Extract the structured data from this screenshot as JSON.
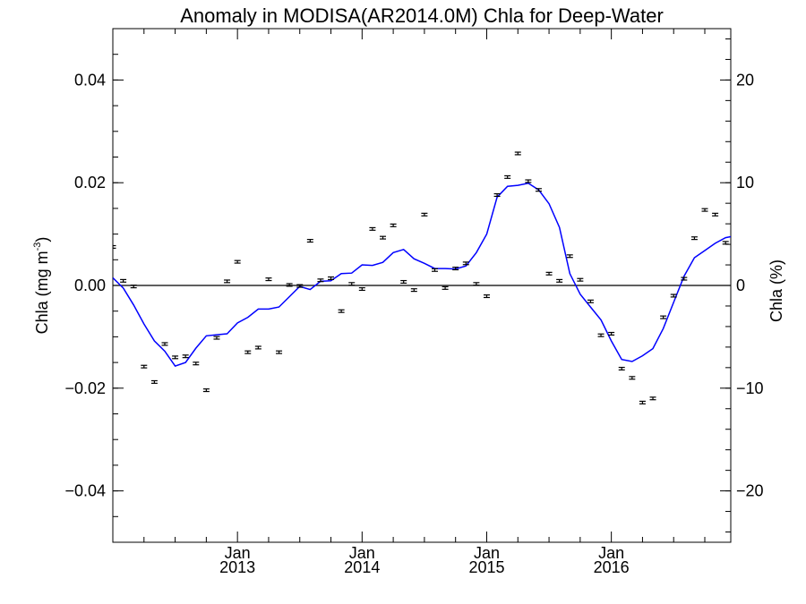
{
  "chart_data": {
    "type": "line",
    "title": "Anomaly in MODISA(AR2014.0M) Chla for Deep-Water",
    "ylabel_main": "Chla (mg m",
    "ylabel_sup": "-3",
    "ylabel_close": ")",
    "y2label": "Chla (%)",
    "xlim": [
      2012.0,
      2016.9583
    ],
    "ylim": [
      -0.05,
      0.05
    ],
    "y2lim": [
      -25,
      25
    ],
    "y_ticks": [
      {
        "value": -0.04,
        "label": "−0.04"
      },
      {
        "value": -0.02,
        "label": "−0.02"
      },
      {
        "value": 0.0,
        "label": "0.00"
      },
      {
        "value": 0.02,
        "label": "0.02"
      },
      {
        "value": 0.04,
        "label": "0.04"
      }
    ],
    "y2_ticks": [
      {
        "value": -20,
        "label": "−20"
      },
      {
        "value": -10,
        "label": "−10"
      },
      {
        "value": 0,
        "label": "0"
      },
      {
        "value": 10,
        "label": "10"
      },
      {
        "value": 20,
        "label": "20"
      }
    ],
    "x_ticks": [
      {
        "value": 2013.0,
        "month": "Jan",
        "year": "2013"
      },
      {
        "value": 2014.0,
        "month": "Jan",
        "year": "2014"
      },
      {
        "value": 2015.0,
        "month": "Jan",
        "year": "2015"
      },
      {
        "value": 2016.0,
        "month": "Jan",
        "year": "2016"
      }
    ],
    "zero_line": 0,
    "series": [
      {
        "kind": "smoothed-line",
        "color": "#0000ff",
        "points": [
          [
            2012.0,
            0.0015
          ],
          [
            2012.0833,
            -0.0005
          ],
          [
            2012.1667,
            -0.0038
          ],
          [
            2012.25,
            -0.0075
          ],
          [
            2012.3333,
            -0.0108
          ],
          [
            2012.4167,
            -0.0128
          ],
          [
            2012.5,
            -0.0157
          ],
          [
            2012.5833,
            -0.015
          ],
          [
            2012.6667,
            -0.0122
          ],
          [
            2012.75,
            -0.0098
          ],
          [
            2012.8333,
            -0.0096
          ],
          [
            2012.9167,
            -0.0094
          ],
          [
            2013.0,
            -0.0073
          ],
          [
            2013.0833,
            -0.0062
          ],
          [
            2013.1667,
            -0.0046
          ],
          [
            2013.25,
            -0.0046
          ],
          [
            2013.3333,
            -0.0042
          ],
          [
            2013.4167,
            -0.0022
          ],
          [
            2013.5,
            -0.0002
          ],
          [
            2013.5833,
            -0.0008
          ],
          [
            2013.6667,
            0.0008
          ],
          [
            2013.75,
            0.0009
          ],
          [
            2013.8333,
            0.0023
          ],
          [
            2013.9167,
            0.0024
          ],
          [
            2014.0,
            0.004
          ],
          [
            2014.0833,
            0.0039
          ],
          [
            2014.1667,
            0.0045
          ],
          [
            2014.25,
            0.0064
          ],
          [
            2014.3333,
            0.007
          ],
          [
            2014.4167,
            0.0052
          ],
          [
            2014.5,
            0.0043
          ],
          [
            2014.5833,
            0.0033
          ],
          [
            2014.6667,
            0.0033
          ],
          [
            2014.75,
            0.0032
          ],
          [
            2014.8333,
            0.0038
          ],
          [
            2014.9167,
            0.0064
          ],
          [
            2015.0,
            0.01
          ],
          [
            2015.0833,
            0.0172
          ],
          [
            2015.1667,
            0.0193
          ],
          [
            2015.25,
            0.0195
          ],
          [
            2015.3333,
            0.0199
          ],
          [
            2015.4167,
            0.0186
          ],
          [
            2015.5,
            0.0159
          ],
          [
            2015.5833,
            0.0113
          ],
          [
            2015.6667,
            0.0023
          ],
          [
            2015.75,
            -0.0017
          ],
          [
            2015.8333,
            -0.0042
          ],
          [
            2015.9167,
            -0.0067
          ],
          [
            2016.0,
            -0.0108
          ],
          [
            2016.0833,
            -0.0144
          ],
          [
            2016.1667,
            -0.0148
          ],
          [
            2016.25,
            -0.0137
          ],
          [
            2016.3333,
            -0.0123
          ],
          [
            2016.4167,
            -0.0084
          ],
          [
            2016.5,
            -0.0033
          ],
          [
            2016.5833,
            0.0018
          ],
          [
            2016.6667,
            0.0054
          ],
          [
            2016.75,
            0.0068
          ],
          [
            2016.8333,
            0.0082
          ],
          [
            2016.9167,
            0.0093
          ],
          [
            2016.9583,
            0.0095
          ]
        ]
      },
      {
        "kind": "monthly-errorbars",
        "color": "#000000",
        "error": 0.00025,
        "points": [
          [
            2012.0,
            0.0075
          ],
          [
            2012.0833,
            0.0009
          ],
          [
            2012.1667,
            -0.0002
          ],
          [
            2012.25,
            -0.0158
          ],
          [
            2012.3333,
            -0.0188
          ],
          [
            2012.4167,
            -0.0114
          ],
          [
            2012.5,
            -0.014
          ],
          [
            2012.5833,
            -0.0138
          ],
          [
            2012.6667,
            -0.0152
          ],
          [
            2012.75,
            -0.0204
          ],
          [
            2012.8333,
            -0.0102
          ],
          [
            2012.9167,
            0.0008
          ],
          [
            2013.0,
            0.0046
          ],
          [
            2013.0833,
            -0.013
          ],
          [
            2013.1667,
            -0.0121
          ],
          [
            2013.25,
            0.0012
          ],
          [
            2013.3333,
            -0.013
          ],
          [
            2013.4167,
            0.0001
          ],
          [
            2013.5,
            -0.0001
          ],
          [
            2013.5833,
            0.0087
          ],
          [
            2013.6667,
            0.001
          ],
          [
            2013.75,
            0.0014
          ],
          [
            2013.8333,
            -0.005
          ],
          [
            2013.9167,
            0.0003
          ],
          [
            2014.0,
            -0.0007
          ],
          [
            2014.0833,
            0.011
          ],
          [
            2014.1667,
            0.0093
          ],
          [
            2014.25,
            0.0117
          ],
          [
            2014.3333,
            0.0007
          ],
          [
            2014.4167,
            -0.0009
          ],
          [
            2014.5,
            0.0138
          ],
          [
            2014.5833,
            0.003
          ],
          [
            2014.6667,
            -0.0005
          ],
          [
            2014.75,
            0.0033
          ],
          [
            2014.8333,
            0.0043
          ],
          [
            2014.9167,
            0.0003
          ],
          [
            2015.0,
            -0.0021
          ],
          [
            2015.0833,
            0.0176
          ],
          [
            2015.1667,
            0.0211
          ],
          [
            2015.25,
            0.0257
          ],
          [
            2015.3333,
            0.0203
          ],
          [
            2015.4167,
            0.0186
          ],
          [
            2015.5,
            0.0023
          ],
          [
            2015.5833,
            0.0009
          ],
          [
            2015.6667,
            0.0057
          ],
          [
            2015.75,
            0.0011
          ],
          [
            2015.8333,
            -0.0031
          ],
          [
            2015.9167,
            -0.0097
          ],
          [
            2016.0,
            -0.0094
          ],
          [
            2016.0833,
            -0.0162
          ],
          [
            2016.1667,
            -0.018
          ],
          [
            2016.25,
            -0.0228
          ],
          [
            2016.3333,
            -0.022
          ],
          [
            2016.4167,
            -0.0062
          ],
          [
            2016.5,
            -0.002
          ],
          [
            2016.5833,
            0.0013
          ],
          [
            2016.6667,
            0.0092
          ],
          [
            2016.75,
            0.0147
          ],
          [
            2016.8333,
            0.0138
          ],
          [
            2016.9167,
            0.0083
          ]
        ]
      }
    ]
  }
}
